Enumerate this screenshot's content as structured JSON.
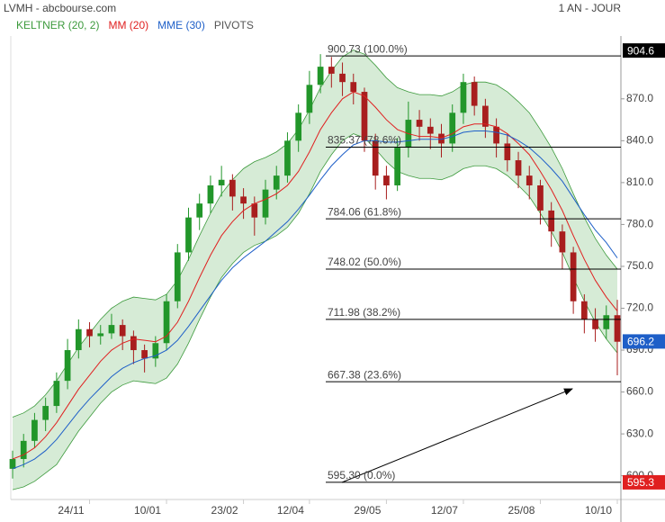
{
  "header": {
    "title": "LVMH - abcbourse.com",
    "period": "1 AN - JOUR"
  },
  "chart_data": {
    "type": "candlestick",
    "categories": [
      null,
      null,
      null,
      null,
      null,
      null,
      null,
      "24/11",
      null,
      null,
      null,
      null,
      null,
      null,
      "10/01",
      null,
      null,
      null,
      null,
      null,
      null,
      "23/02",
      null,
      null,
      null,
      null,
      null,
      "12/04",
      null,
      null,
      null,
      null,
      null,
      null,
      "29/05",
      null,
      null,
      null,
      null,
      null,
      null,
      "12/07",
      null,
      null,
      null,
      null,
      null,
      null,
      "25/08",
      null,
      null,
      null,
      null,
      null,
      null,
      "10/10"
    ],
    "ohlc": {
      "open": [
        605,
        612,
        625,
        640,
        650,
        668,
        690,
        705,
        700,
        702,
        708,
        700,
        690,
        684,
        695,
        725,
        760,
        785,
        795,
        808,
        812,
        800,
        795,
        785,
        805,
        815,
        840,
        860,
        880,
        893,
        888,
        882,
        875,
        840,
        815,
        808,
        835,
        855,
        850,
        845,
        838,
        860,
        882,
        865,
        850,
        838,
        826,
        815,
        808,
        790,
        775,
        760,
        725,
        712,
        705,
        715
      ],
      "high": [
        618,
        630,
        645,
        656,
        674,
        698,
        712,
        710,
        708,
        716,
        712,
        704,
        694,
        700,
        730,
        766,
        792,
        802,
        815,
        822,
        816,
        806,
        800,
        812,
        822,
        846,
        866,
        890,
        902,
        900,
        896,
        888,
        878,
        845,
        822,
        842,
        868,
        862,
        856,
        852,
        866,
        888,
        886,
        870,
        856,
        845,
        832,
        822,
        812,
        796,
        780,
        764,
        730,
        720,
        722,
        726
      ],
      "low": [
        598,
        606,
        620,
        632,
        645,
        662,
        684,
        692,
        694,
        698,
        690,
        680,
        674,
        678,
        690,
        720,
        754,
        776,
        788,
        800,
        790,
        784,
        772,
        780,
        798,
        810,
        832,
        852,
        874,
        878,
        872,
        866,
        832,
        805,
        798,
        804,
        828,
        840,
        834,
        828,
        832,
        852,
        858,
        842,
        828,
        818,
        806,
        798,
        780,
        764,
        748,
        716,
        702,
        696,
        698,
        672
      ],
      "close": [
        612,
        625,
        640,
        650,
        668,
        690,
        705,
        700,
        702,
        708,
        700,
        690,
        684,
        695,
        725,
        760,
        785,
        795,
        808,
        812,
        800,
        795,
        785,
        805,
        815,
        840,
        860,
        880,
        893,
        888,
        882,
        875,
        840,
        815,
        808,
        835,
        855,
        850,
        845,
        838,
        860,
        882,
        865,
        850,
        838,
        826,
        815,
        808,
        790,
        775,
        760,
        725,
        712,
        705,
        715,
        696
      ]
    },
    "up_color": "#22962a",
    "down_color": "#a81e1e",
    "indicators": [
      {
        "name": "KELTNER (20, 2)",
        "color": "#3c9a3c",
        "upper": [
          642,
          645,
          650,
          658,
          668,
          680,
          692,
          702,
          712,
          720,
          725,
          728,
          727,
          726,
          730,
          740,
          755,
          772,
          788,
          802,
          812,
          820,
          825,
          828,
          832,
          838,
          848,
          862,
          878,
          890,
          900,
          905,
          902,
          894,
          885,
          878,
          875,
          873,
          873,
          872,
          875,
          880,
          882,
          882,
          880,
          875,
          868,
          860,
          848,
          835,
          820,
          802,
          785,
          770,
          758,
          748
        ],
        "lower": [
          590,
          592,
          596,
          602,
          608,
          620,
          632,
          642,
          652,
          660,
          665,
          668,
          667,
          666,
          670,
          680,
          695,
          712,
          728,
          742,
          752,
          760,
          765,
          768,
          772,
          778,
          788,
          802,
          818,
          830,
          840,
          845,
          842,
          834,
          825,
          818,
          815,
          813,
          813,
          812,
          815,
          820,
          822,
          822,
          820,
          815,
          808,
          800,
          788,
          775,
          760,
          742,
          725,
          710,
          698,
          688
        ]
      },
      {
        "name": "MM (20)",
        "color": "#e02020",
        "values": [
          612,
          615,
          620,
          628,
          638,
          650,
          662,
          672,
          682,
          690,
          695,
          698,
          697,
          696,
          700,
          710,
          725,
          742,
          758,
          772,
          782,
          790,
          795,
          798,
          802,
          808,
          818,
          832,
          848,
          860,
          870,
          875,
          872,
          864,
          855,
          848,
          845,
          843,
          843,
          842,
          845,
          850,
          852,
          852,
          850,
          845,
          838,
          830,
          818,
          805,
          790,
          772,
          755,
          740,
          728,
          718
        ]
      },
      {
        "name": "MME (30)",
        "color": "#1e5fc8",
        "values": [
          605,
          608,
          612,
          618,
          626,
          636,
          646,
          655,
          663,
          671,
          677,
          681,
          684,
          686,
          690,
          697,
          707,
          718,
          729,
          740,
          749,
          756,
          762,
          768,
          775,
          782,
          791,
          801,
          812,
          822,
          830,
          837,
          840,
          840,
          839,
          839,
          840,
          841,
          841,
          841,
          843,
          846,
          847,
          847,
          846,
          844,
          840,
          835,
          828,
          820,
          811,
          799,
          787,
          776,
          767,
          756
        ]
      }
    ],
    "pivots": {
      "name": "PIVOTS",
      "color": "#555555",
      "levels": [
        {
          "value": 900.73,
          "label": "900.73  (100.0%)"
        },
        {
          "value": 835.37,
          "label": "835.37  (78.6%)"
        },
        {
          "value": 784.06,
          "label": "784.06  (61.8%)"
        },
        {
          "value": 748.02,
          "label": "748.02  (50.0%)"
        },
        {
          "value": 711.98,
          "label": "711.98  (38.2%)"
        },
        {
          "value": 667.38,
          "label": "667.38  (23.6%)"
        },
        {
          "value": 595.3,
          "label": "595.30  (0.0%)"
        }
      ]
    },
    "price_labels": [
      904.6,
      696.2,
      595.3
    ],
    "price_label_colors": [
      "#000000",
      "#1e5fc8",
      "#e02020"
    ],
    "ylim": [
      583,
      915
    ],
    "yticks": [
      {
        "value": 600,
        "label": "600.0"
      },
      {
        "value": 630,
        "label": "630.0"
      },
      {
        "value": 660,
        "label": "660.0"
      },
      {
        "value": 690,
        "label": "690.0"
      },
      {
        "value": 720,
        "label": "720.0"
      },
      {
        "value": 750,
        "label": "750.0"
      },
      {
        "value": 780,
        "label": "780.0"
      },
      {
        "value": 810,
        "label": "810.0"
      },
      {
        "value": 840,
        "label": "840.0"
      },
      {
        "value": 870,
        "label": "870.0"
      }
    ]
  }
}
